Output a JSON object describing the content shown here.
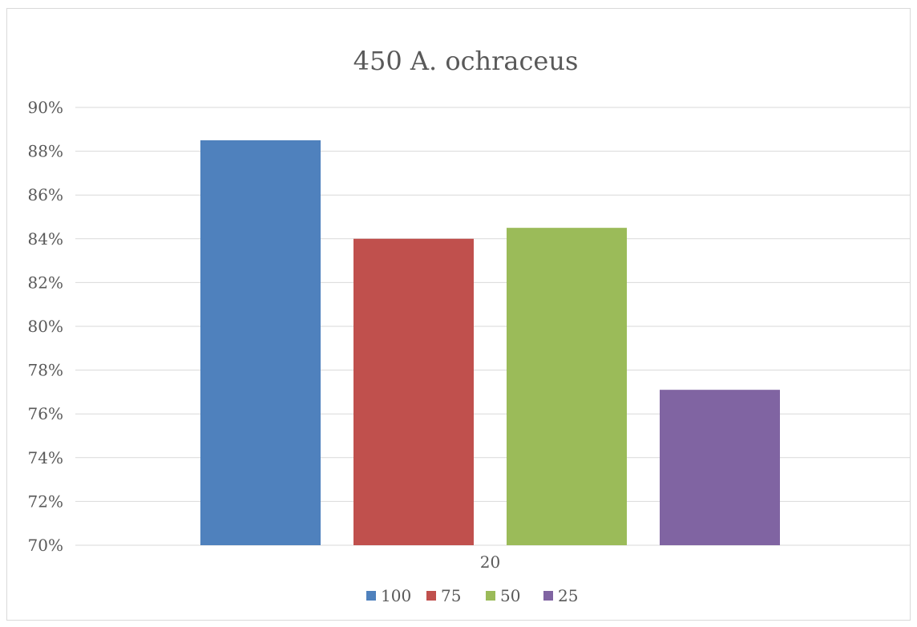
{
  "chart_data": {
    "type": "bar",
    "title": "450 A. ochraceus",
    "categories": [
      "20"
    ],
    "series": [
      {
        "name": "100",
        "values": [
          0.885
        ],
        "color": "#4f81bd"
      },
      {
        "name": "75",
        "values": [
          0.84
        ],
        "color": "#c0504d"
      },
      {
        "name": "50",
        "values": [
          0.845
        ],
        "color": "#9bbb59"
      },
      {
        "name": "25",
        "values": [
          0.771
        ],
        "color": "#8064a2"
      }
    ],
    "ylim": [
      0.7,
      0.9
    ],
    "yticks": [
      0.7,
      0.72,
      0.74,
      0.76,
      0.78,
      0.8,
      0.82,
      0.84,
      0.86,
      0.88,
      0.9
    ],
    "ytick_labels": [
      "70%",
      "72%",
      "74%",
      "76%",
      "78%",
      "80%",
      "82%",
      "84%",
      "86%",
      "88%",
      "90%"
    ],
    "grid": true,
    "legend_position": "bottom"
  }
}
